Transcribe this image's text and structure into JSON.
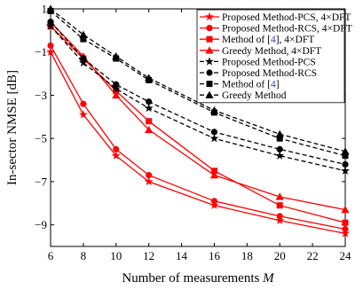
{
  "chart_data": {
    "type": "line",
    "xlabel": "Number of measurements",
    "xlabel_symbol": "M",
    "ylabel": "In-sector NMSE [dB]",
    "xlim": [
      6,
      24
    ],
    "ylim": [
      -10,
      1
    ],
    "xticks": [
      6,
      8,
      10,
      12,
      14,
      16,
      18,
      20,
      22,
      24
    ],
    "yticks": [
      1,
      -1,
      -3,
      -5,
      -7,
      -9
    ],
    "grid": false,
    "legend_position": "top-right",
    "x": [
      6,
      8,
      10,
      12,
      16,
      20,
      24
    ],
    "series": [
      {
        "name_before": "Proposed Method-PCS, 4",
        "name_after": "DFT",
        "color": "#ff0000",
        "dash": "solid",
        "marker": "star",
        "values": [
          -1.0,
          -3.9,
          -5.8,
          -7.0,
          -8.1,
          -8.8,
          -9.4
        ]
      },
      {
        "name_before": "Proposed Method-RCS, 4",
        "name_after": "DFT",
        "color": "#ff0000",
        "dash": "solid",
        "marker": "circle",
        "values": [
          -0.7,
          -3.4,
          -5.5,
          -6.7,
          -7.9,
          -8.6,
          -9.2
        ]
      },
      {
        "name_before": "Method of [",
        "name_ref": "4",
        "name_after_ref": "], 4",
        "name_after": "DFT",
        "color": "#ff0000",
        "dash": "solid",
        "marker": "square",
        "values": [
          0.2,
          -1.3,
          -2.8,
          -4.2,
          -6.5,
          -8.1,
          -8.9
        ]
      },
      {
        "name_before": "Greedy Method, 4",
        "name_after": "DFT",
        "color": "#ff0000",
        "dash": "solid",
        "marker": "triangle",
        "values": [
          0.4,
          -1.2,
          -3.0,
          -4.6,
          -6.7,
          -7.7,
          -8.3
        ]
      },
      {
        "name": "Proposed Method-PCS",
        "color": "#000000",
        "dash": "dashed",
        "marker": "star",
        "values": [
          0.2,
          -1.5,
          -2.7,
          -3.6,
          -5.0,
          -5.8,
          -6.5
        ]
      },
      {
        "name": "Proposed Method-RCS",
        "color": "#000000",
        "dash": "dashed",
        "marker": "circle",
        "values": [
          0.4,
          -1.3,
          -2.5,
          -3.3,
          -4.7,
          -5.5,
          -6.2
        ]
      },
      {
        "name_before": "Method of [",
        "name_ref": "4",
        "name_after_ref": "]",
        "color": "#000000",
        "dash": "dashed",
        "marker": "square",
        "values": [
          0.9,
          -0.4,
          -1.3,
          -2.3,
          -3.8,
          -5.0,
          -5.8
        ]
      },
      {
        "name": "Greedy Method",
        "color": "#000000",
        "dash": "dashed",
        "marker": "triangle",
        "values": [
          1.0,
          -0.2,
          -1.2,
          -2.2,
          -3.7,
          -4.8,
          -5.6
        ]
      }
    ]
  }
}
